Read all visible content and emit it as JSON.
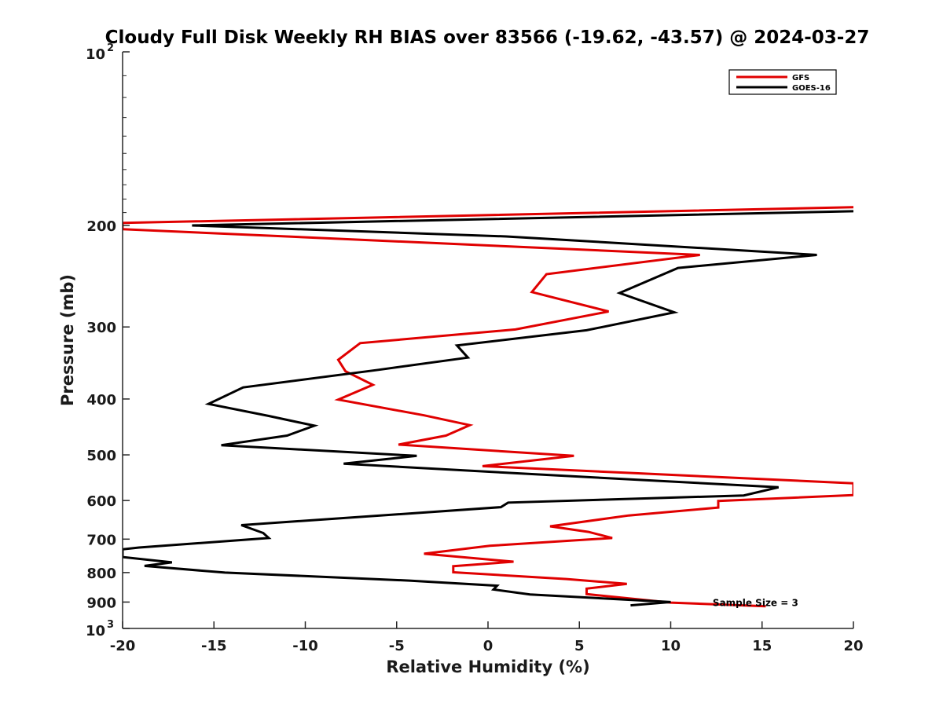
{
  "chart_data": {
    "type": "line",
    "title": "Cloudy Full Disk Weekly RH BIAS over 83566 (-19.62, -43.57) @ 2024-03-27",
    "xlabel": "Relative Humidity (%)",
    "ylabel": "Pressure (mb)",
    "xlim": [
      -20,
      20
    ],
    "ylim": [
      100,
      1000
    ],
    "y_scale": "log",
    "y_reversed": true,
    "grid": false,
    "legend_position": "top-right",
    "x_ticks": [
      -20,
      -15,
      -10,
      -5,
      0,
      5,
      10,
      15,
      20
    ],
    "x_tick_labels": [
      "-20",
      "-15",
      "-10",
      "-5",
      "0",
      "5",
      "10",
      "15",
      "20"
    ],
    "y_ticks": [
      200,
      300,
      400,
      500,
      600,
      700,
      800,
      900
    ],
    "y_tick_labels": [
      "200",
      "300",
      "400",
      "500",
      "600",
      "700",
      "800",
      "900"
    ],
    "y_decade_labels": [
      {
        "value": 100,
        "base": "10",
        "exp": "2"
      },
      {
        "value": 1000,
        "base": "10",
        "exp": "3"
      }
    ],
    "annotations": [
      {
        "text": "Sample Size = 3",
        "x": 15.5,
        "y": 900
      }
    ],
    "series": [
      {
        "name": "GFS",
        "color": "#e00000",
        "points": [
          {
            "x": 20.0,
            "y": 186
          },
          {
            "x": -20.0,
            "y": 198
          },
          {
            "x": -20.0,
            "y": 203
          },
          {
            "x": 11.6,
            "y": 225
          },
          {
            "x": 3.2,
            "y": 243
          },
          {
            "x": 2.4,
            "y": 261
          },
          {
            "x": 6.6,
            "y": 282
          },
          {
            "x": 1.5,
            "y": 303
          },
          {
            "x": -7.0,
            "y": 320
          },
          {
            "x": -8.2,
            "y": 342
          },
          {
            "x": -7.8,
            "y": 358
          },
          {
            "x": -6.3,
            "y": 378
          },
          {
            "x": -8.2,
            "y": 401
          },
          {
            "x": -3.5,
            "y": 427
          },
          {
            "x": -1.0,
            "y": 444
          },
          {
            "x": -2.3,
            "y": 463
          },
          {
            "x": -4.9,
            "y": 480
          },
          {
            "x": 4.7,
            "y": 502
          },
          {
            "x": -0.3,
            "y": 523
          },
          {
            "x": 8.1,
            "y": 538
          },
          {
            "x": 20.0,
            "y": 560
          },
          {
            "x": 20.0,
            "y": 587
          },
          {
            "x": 12.6,
            "y": 601
          },
          {
            "x": 12.6,
            "y": 617
          },
          {
            "x": 7.7,
            "y": 637
          },
          {
            "x": 3.4,
            "y": 665
          },
          {
            "x": 5.5,
            "y": 680
          },
          {
            "x": 6.8,
            "y": 697
          },
          {
            "x": 0.1,
            "y": 719
          },
          {
            "x": -3.5,
            "y": 742
          },
          {
            "x": 1.4,
            "y": 766
          },
          {
            "x": -1.9,
            "y": 780
          },
          {
            "x": -1.9,
            "y": 799
          },
          {
            "x": 4.3,
            "y": 821
          },
          {
            "x": 7.6,
            "y": 837
          },
          {
            "x": 5.4,
            "y": 853
          },
          {
            "x": 5.4,
            "y": 872
          },
          {
            "x": 10.0,
            "y": 902
          },
          {
            "x": 15.2,
            "y": 915
          }
        ]
      },
      {
        "name": "GOES-16",
        "color": "#000000",
        "points": [
          {
            "x": 20.0,
            "y": 189
          },
          {
            "x": -16.2,
            "y": 200
          },
          {
            "x": 1.0,
            "y": 209
          },
          {
            "x": 18.0,
            "y": 225
          },
          {
            "x": 10.4,
            "y": 237
          },
          {
            "x": 7.2,
            "y": 262
          },
          {
            "x": 10.2,
            "y": 283
          },
          {
            "x": 5.4,
            "y": 304
          },
          {
            "x": -1.7,
            "y": 323
          },
          {
            "x": -1.1,
            "y": 339
          },
          {
            "x": -6.0,
            "y": 356
          },
          {
            "x": -13.4,
            "y": 382
          },
          {
            "x": -15.3,
            "y": 408
          },
          {
            "x": -12.0,
            "y": 428
          },
          {
            "x": -9.5,
            "y": 445
          },
          {
            "x": -11.0,
            "y": 463
          },
          {
            "x": -14.6,
            "y": 481
          },
          {
            "x": -3.9,
            "y": 502
          },
          {
            "x": -7.9,
            "y": 518
          },
          {
            "x": 1.5,
            "y": 538
          },
          {
            "x": 15.9,
            "y": 569
          },
          {
            "x": 14.0,
            "y": 588
          },
          {
            "x": 1.1,
            "y": 605
          },
          {
            "x": 0.7,
            "y": 616
          },
          {
            "x": -13.5,
            "y": 662
          },
          {
            "x": -12.3,
            "y": 683
          },
          {
            "x": -12.0,
            "y": 697
          },
          {
            "x": -19.1,
            "y": 724
          },
          {
            "x": -20.0,
            "y": 729
          },
          {
            "x": -20.0,
            "y": 752
          },
          {
            "x": -17.3,
            "y": 768
          },
          {
            "x": -18.8,
            "y": 779
          },
          {
            "x": -14.4,
            "y": 800
          },
          {
            "x": -4.3,
            "y": 826
          },
          {
            "x": 0.5,
            "y": 843
          },
          {
            "x": 0.3,
            "y": 856
          },
          {
            "x": 2.3,
            "y": 873
          },
          {
            "x": 10.0,
            "y": 900
          },
          {
            "x": 7.8,
            "y": 912
          }
        ]
      }
    ]
  }
}
